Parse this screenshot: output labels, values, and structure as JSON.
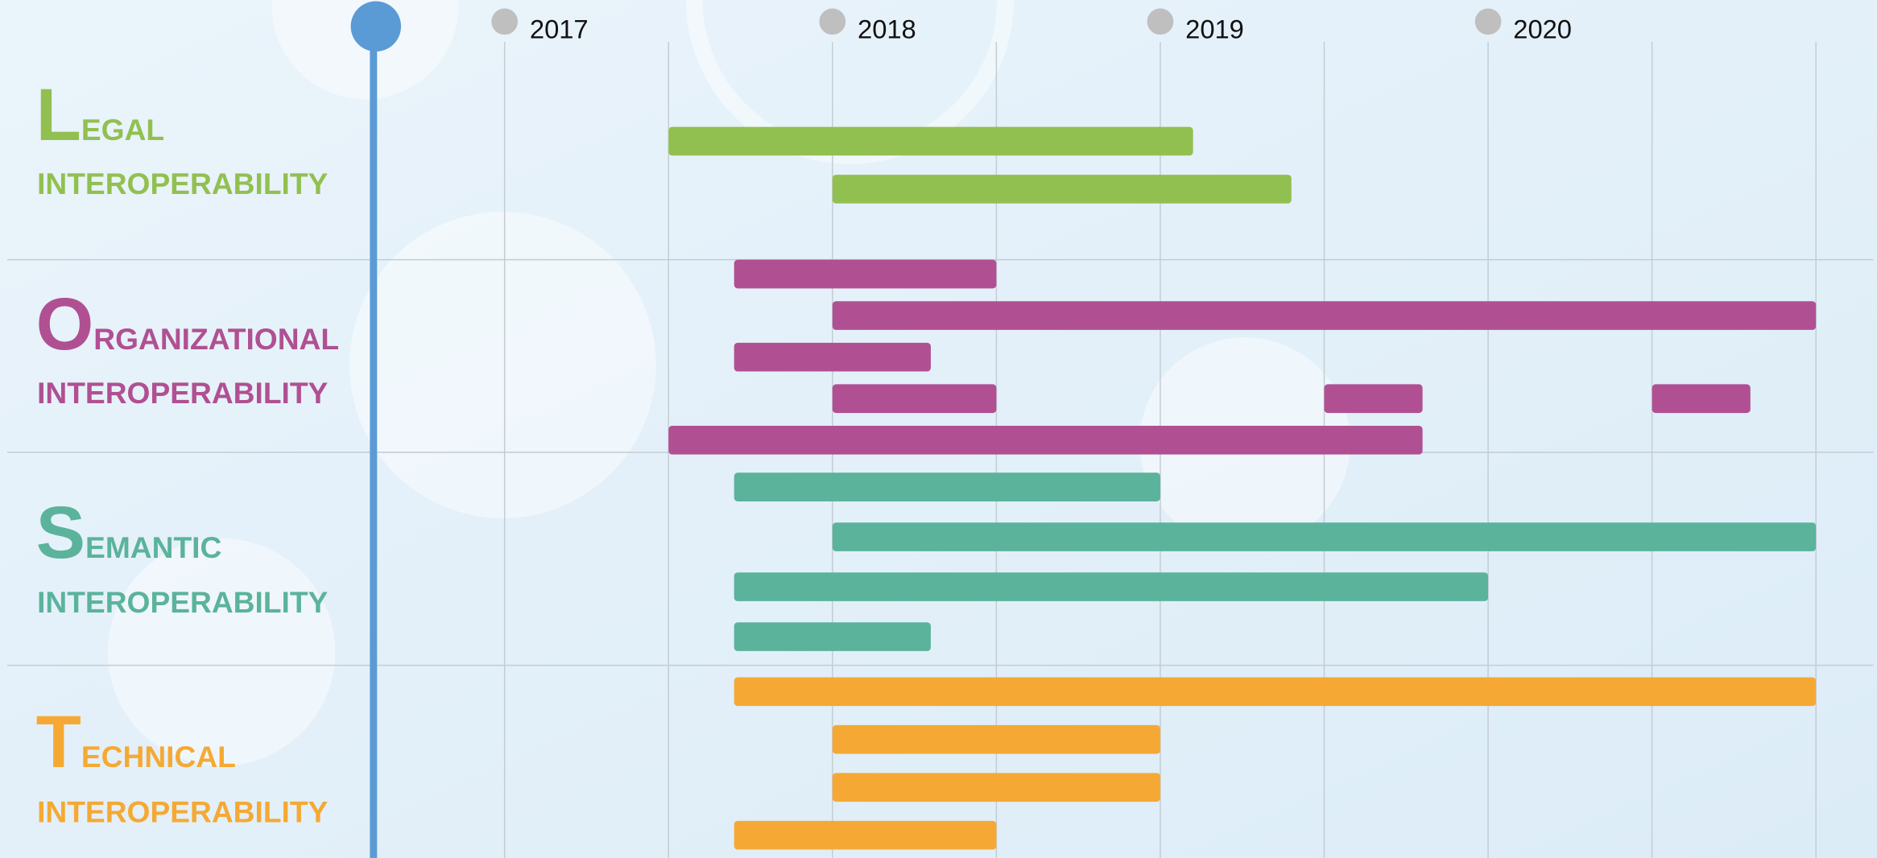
{
  "chart_data": {
    "type": "gantt",
    "xlim": [
      2016.6,
      2021
    ],
    "xticks": [
      2017,
      2018,
      2019,
      2020
    ],
    "minor_xticks": [
      2017.5,
      2018.5,
      2019.5,
      2020.5,
      2021
    ],
    "grid": true,
    "groups": [
      {
        "initial": "L",
        "rest": "EGAL",
        "subtitle": "INTEROPERABILITY",
        "color": "#92c050",
        "rows": [
          [
            [
              2017.5,
              2019.1
            ]
          ],
          [
            [
              2018,
              2019.4
            ]
          ]
        ]
      },
      {
        "initial": "O",
        "rest": "RGANIZATIONAL",
        "subtitle": "INTEROPERABILITY",
        "color": "#b05092",
        "rows": [
          [
            [
              2017.7,
              2018.5
            ]
          ],
          [
            [
              2018,
              2021
            ]
          ],
          [
            [
              2017.7,
              2018.3
            ]
          ],
          [
            [
              2018,
              2018.5
            ],
            [
              2019.5,
              2019.8
            ],
            [
              2020.5,
              2020.8
            ]
          ],
          [
            [
              2017.5,
              2019.8
            ]
          ]
        ]
      },
      {
        "initial": "S",
        "rest": "EMANTIC",
        "subtitle": "INTEROPERABILITY",
        "color": "#5bb39c",
        "rows": [
          [
            [
              2017.7,
              2019
            ]
          ],
          [
            [
              2018,
              2021
            ]
          ],
          [
            [
              2017.7,
              2020
            ]
          ],
          [
            [
              2017.7,
              2018.3
            ]
          ]
        ]
      },
      {
        "initial": "T",
        "rest": "ECHNICAL",
        "subtitle": "INTEROPERABILITY",
        "color": "#f5a934",
        "rows": [
          [
            [
              2017.7,
              2021
            ]
          ],
          [
            [
              2018,
              2019
            ]
          ],
          [
            [
              2018,
              2019
            ]
          ],
          [
            [
              2017.7,
              2018.5
            ]
          ]
        ]
      }
    ]
  }
}
